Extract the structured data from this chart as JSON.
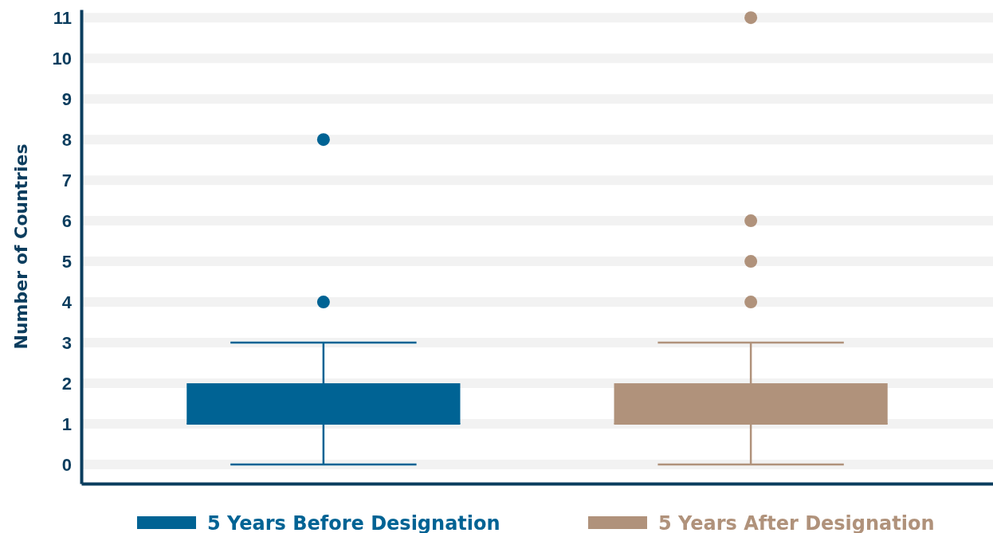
{
  "chart_data": {
    "type": "box",
    "ylabel": "Number of Countries",
    "categories": [
      null
    ],
    "series": [
      {
        "name": "5 Years Before Designation",
        "color": "#006394",
        "boxes": [
          {
            "low": 0,
            "q1": 1,
            "median": 1,
            "q3": 2,
            "high": 3,
            "outliers": [
              4,
              8
            ]
          }
        ]
      },
      {
        "name": "5 Years After Designation",
        "color": "#b0927b",
        "boxes": [
          {
            "low": 0,
            "q1": 1,
            "median": 1,
            "q3": 2,
            "high": 3,
            "outliers": [
              4,
              5,
              6,
              11
            ]
          }
        ]
      }
    ],
    "ylim": [
      -0.47,
      11.2
    ],
    "yticks": [
      0,
      1,
      2,
      3,
      4,
      5,
      6,
      7,
      8,
      9,
      10,
      11
    ],
    "grid": "y",
    "legend": "bottom",
    "tick_labels": "y"
  }
}
